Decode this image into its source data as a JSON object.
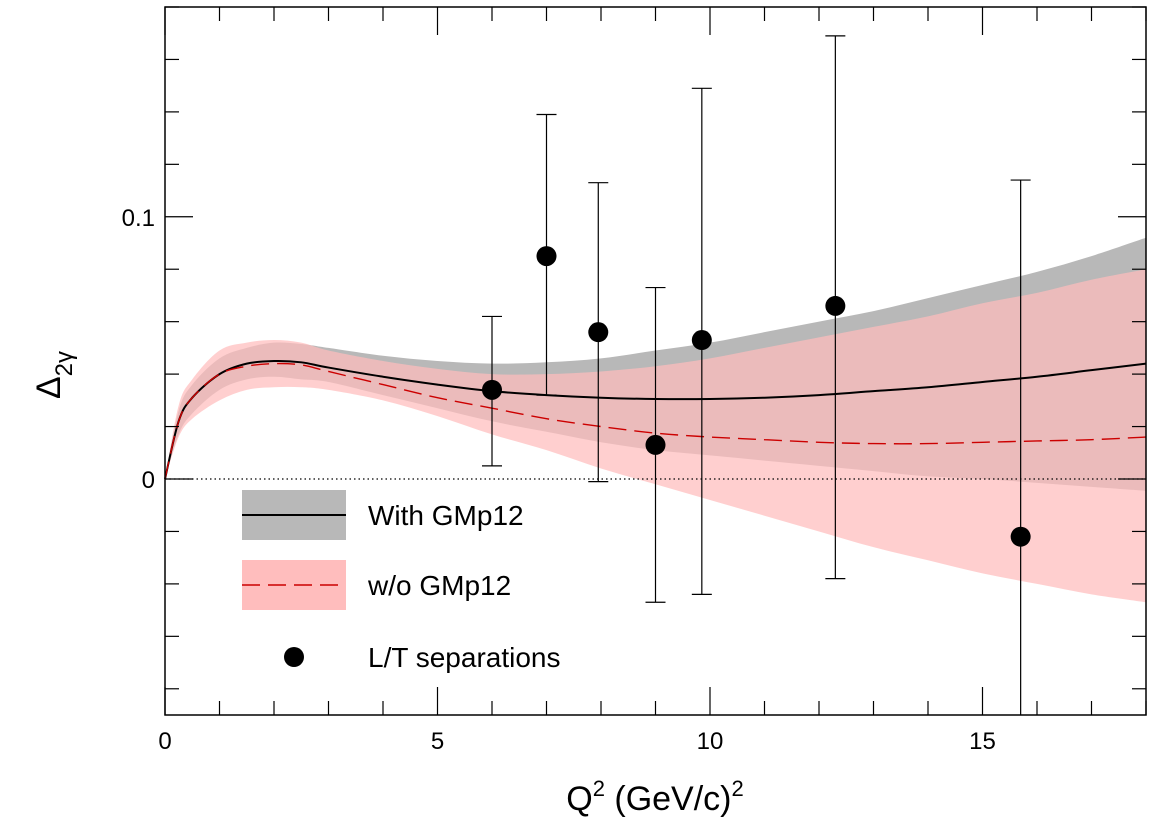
{
  "chart_data": {
    "type": "line",
    "xlabel": {
      "main": "Q",
      "sup": "2",
      "mid": " (GeV/c)",
      "sup2": "2"
    },
    "ylabel": {
      "main": "Δ",
      "sub": "2γ"
    },
    "xlim": [
      0,
      18
    ],
    "ylim": [
      -0.09,
      0.18
    ],
    "x_ticks": [
      0,
      5,
      10,
      15
    ],
    "x_tick_labels": [
      "0",
      "5",
      "10",
      "15"
    ],
    "y_ticks": [
      0,
      0.1
    ],
    "y_tick_labels": [
      "0",
      "0.1"
    ],
    "zero_line": true,
    "grid": false,
    "legend": {
      "placement": "bottom-left",
      "entries": [
        {
          "label": "With GMp12",
          "style": "band-solid"
        },
        {
          "label": "w/o GMp12",
          "style": "band-dashed"
        },
        {
          "label": "L/T separations",
          "style": "marker"
        }
      ]
    },
    "series": [
      {
        "name": "With GMp12",
        "kind": "curve-with-band",
        "line_color": "#000000",
        "band_color": "#b8b8b8",
        "x": [
          0,
          0.25,
          0.5,
          1,
          1.5,
          2,
          2.5,
          3,
          4,
          5,
          6,
          7,
          8,
          9,
          10,
          11,
          12,
          13,
          14,
          15,
          16,
          17,
          18
        ],
        "y": [
          0,
          0.022,
          0.031,
          0.04,
          0.044,
          0.045,
          0.0445,
          0.0425,
          0.039,
          0.036,
          0.0335,
          0.032,
          0.031,
          0.0305,
          0.0305,
          0.031,
          0.032,
          0.0335,
          0.035,
          0.037,
          0.039,
          0.0415,
          0.044
        ],
        "y_low": [
          0,
          0.017,
          0.025,
          0.034,
          0.038,
          0.039,
          0.038,
          0.037,
          0.032,
          0.027,
          0.022,
          0.018,
          0.014,
          0.011,
          0.009,
          0.007,
          0.005,
          0.003,
          0.001,
          0.0,
          -0.0015,
          -0.003,
          -0.0045
        ],
        "y_high": [
          0,
          0.026,
          0.036,
          0.046,
          0.05,
          0.052,
          0.0515,
          0.05,
          0.047,
          0.045,
          0.044,
          0.0445,
          0.046,
          0.049,
          0.052,
          0.056,
          0.06,
          0.064,
          0.069,
          0.074,
          0.079,
          0.085,
          0.092
        ]
      },
      {
        "name": "w/o GMp12",
        "kind": "curve-with-band",
        "line_color": "#cc0000",
        "band_color": "#ffbdbd",
        "x": [
          0,
          0.25,
          0.5,
          1,
          1.5,
          2,
          2.5,
          3,
          4,
          5,
          6,
          7,
          8,
          9,
          10,
          11,
          12,
          13,
          14,
          15,
          16,
          17,
          18
        ],
        "y": [
          0,
          0.022,
          0.031,
          0.04,
          0.043,
          0.044,
          0.0435,
          0.041,
          0.036,
          0.031,
          0.027,
          0.023,
          0.02,
          0.0175,
          0.016,
          0.015,
          0.014,
          0.0135,
          0.0135,
          0.014,
          0.0145,
          0.015,
          0.016
        ],
        "y_low": [
          0,
          0.016,
          0.023,
          0.03,
          0.034,
          0.035,
          0.035,
          0.034,
          0.03,
          0.024,
          0.017,
          0.011,
          0.004,
          -0.002,
          -0.008,
          -0.014,
          -0.02,
          -0.026,
          -0.031,
          -0.036,
          -0.04,
          -0.044,
          -0.047
        ],
        "y_high": [
          0,
          0.028,
          0.038,
          0.049,
          0.052,
          0.053,
          0.052,
          0.049,
          0.045,
          0.042,
          0.04,
          0.04,
          0.041,
          0.043,
          0.046,
          0.05,
          0.054,
          0.058,
          0.062,
          0.067,
          0.071,
          0.076,
          0.08
        ]
      },
      {
        "name": "L/T separations",
        "kind": "points-with-errors",
        "color": "#000000",
        "x": [
          6.0,
          7.0,
          7.95,
          9.0,
          9.85,
          12.3,
          15.7
        ],
        "y": [
          0.034,
          0.085,
          0.056,
          0.013,
          0.053,
          0.066,
          -0.022
        ],
        "y_low": [
          0.005,
          0.032,
          -0.001,
          -0.047,
          -0.044,
          -0.038,
          -0.09
        ],
        "y_high": [
          0.062,
          0.139,
          0.113,
          0.073,
          0.149,
          0.169,
          0.114
        ]
      }
    ]
  }
}
